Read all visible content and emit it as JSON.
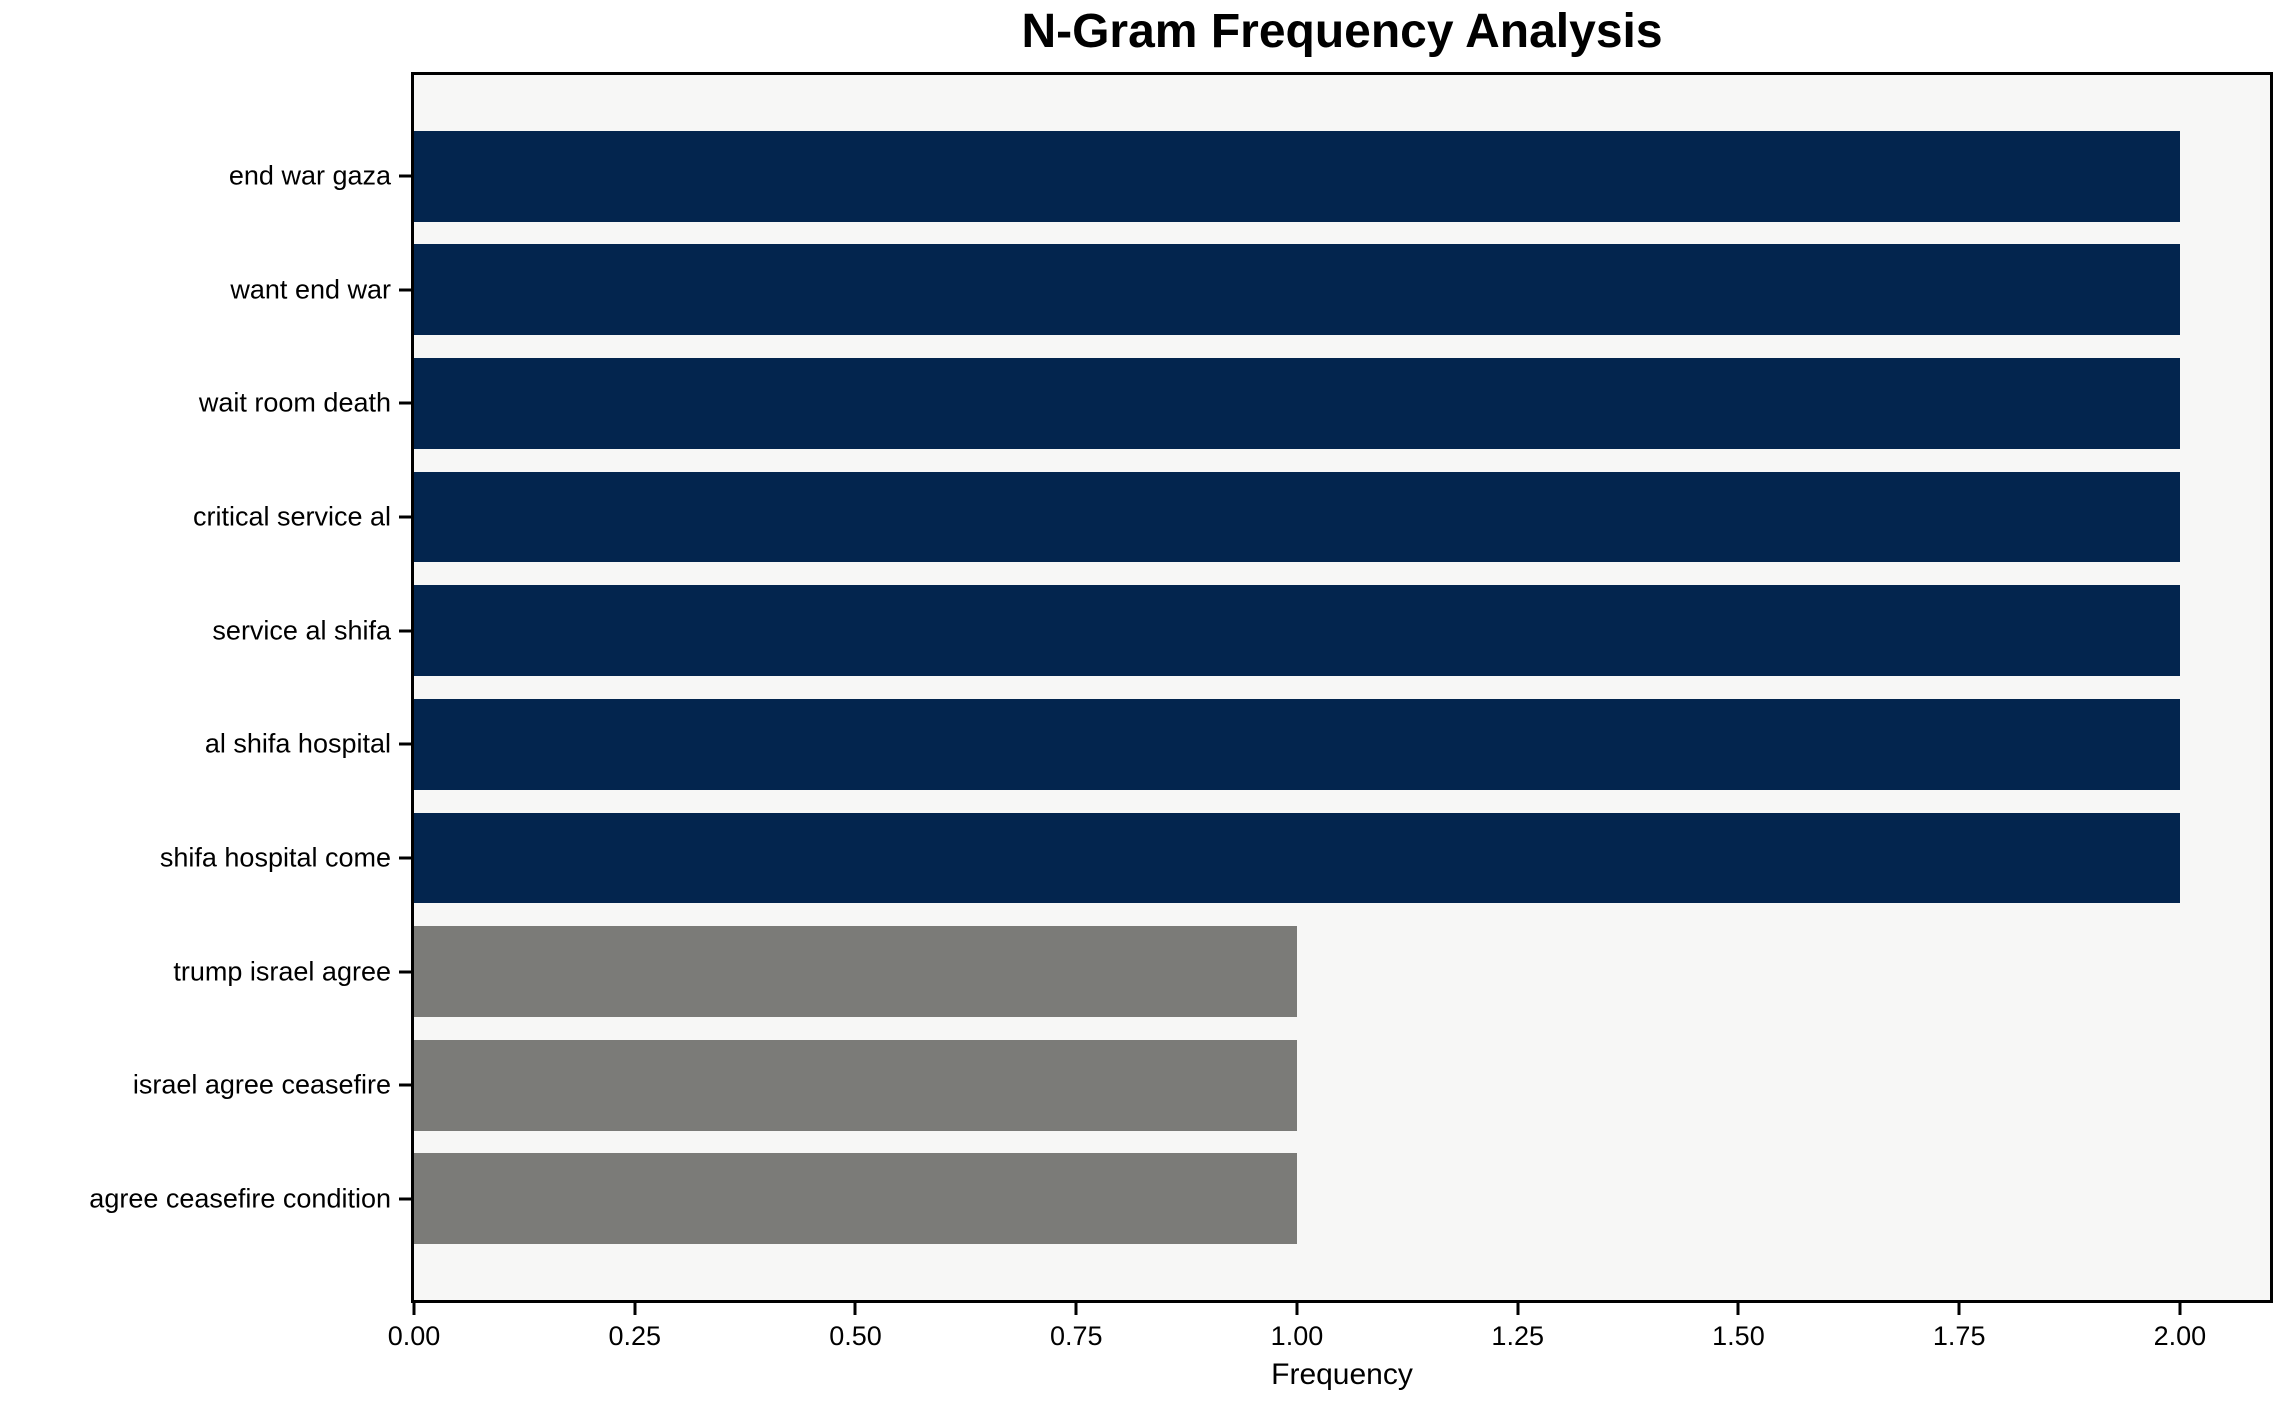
{
  "chart_data": {
    "type": "bar",
    "orientation": "horizontal",
    "title": "N-Gram Frequency Analysis",
    "xlabel": "Frequency",
    "ylabel": "",
    "categories": [
      "end war gaza",
      "want end war",
      "wait room death",
      "critical service al",
      "service al shifa",
      "al shifa hospital",
      "shifa hospital come",
      "trump israel agree",
      "israel agree ceasefire",
      "agree ceasefire condition"
    ],
    "values": [
      2.0,
      2.0,
      2.0,
      2.0,
      2.0,
      2.0,
      2.0,
      1.0,
      1.0,
      1.0
    ],
    "bar_colors": [
      "#03254e",
      "#03254e",
      "#03254e",
      "#03254e",
      "#03254e",
      "#03254e",
      "#03254e",
      "#7b7b78",
      "#7b7b78",
      "#7b7b78"
    ],
    "x_tick_values": [
      0,
      0.25,
      0.5,
      0.75,
      1.0,
      1.25,
      1.5,
      1.75,
      2.0
    ],
    "x_tick_labels": [
      "0.00",
      "0.25",
      "0.50",
      "0.75",
      "1.00",
      "1.25",
      "1.50",
      "1.75",
      "2.00"
    ],
    "xlim": [
      0,
      2.102
    ],
    "grid": false,
    "legend": "none",
    "colors": {
      "bar_high": "#03254e",
      "bar_low": "#7b7b78",
      "plot_background": "#f7f7f6",
      "figure_background": "#ffffff",
      "spine": "#000000",
      "text": "#000000"
    }
  }
}
